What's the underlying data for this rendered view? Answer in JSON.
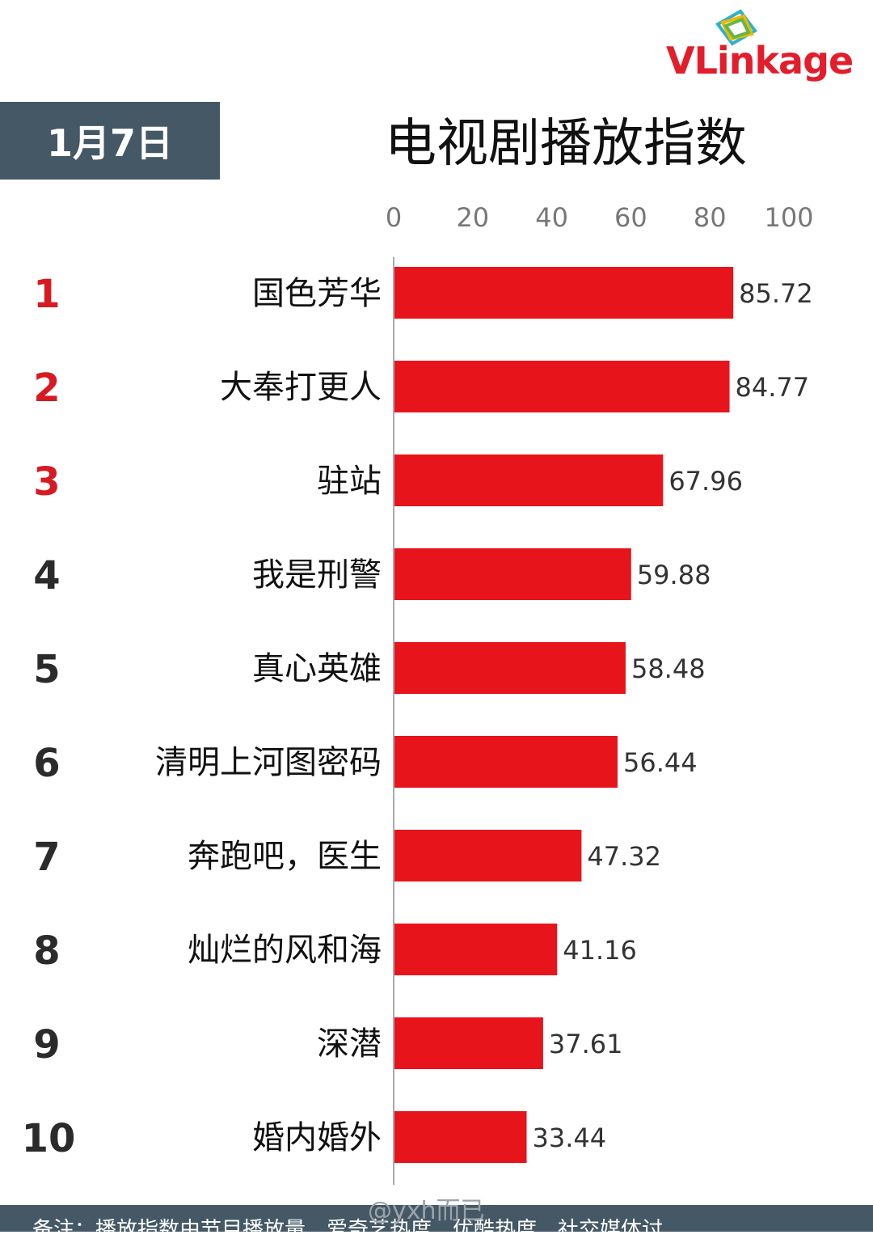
{
  "header": {
    "date": "1月7日",
    "title": "电视剧播放指数"
  },
  "logo": {
    "part1": "VL",
    "part2": "inkage",
    "color": "#e31d2b"
  },
  "footer": {
    "note": "备注：播放指数由节目播放量、爱奇艺热度、优酷热度、社交媒体讨"
  },
  "watermark": "@yxh而已",
  "chart_data": {
    "type": "bar",
    "orientation": "horizontal",
    "title": "电视剧播放指数",
    "xlim": [
      0,
      100
    ],
    "xticks": [
      0,
      20,
      40,
      60,
      80,
      100
    ],
    "bar_color": "#e8141c",
    "rank_highlight_color": "#d71a21",
    "ranks": [
      "1",
      "2",
      "3",
      "4",
      "5",
      "6",
      "7",
      "8",
      "9",
      "10"
    ],
    "categories": [
      "国色芳华",
      "大奉打更人",
      "驻站",
      "我是刑警",
      "真心英雄",
      "清明上河图密码",
      "奔跑吧，医生",
      "灿烂的风和海",
      "深潜",
      "婚内婚外"
    ],
    "values": [
      85.72,
      84.77,
      67.96,
      59.88,
      58.48,
      56.44,
      47.32,
      41.16,
      37.61,
      33.44
    ],
    "value_labels": [
      "85.72",
      "84.77",
      "67.96",
      "59.88",
      "58.48",
      "56.44",
      "47.32",
      "41.16",
      "37.61",
      "33.44"
    ]
  }
}
